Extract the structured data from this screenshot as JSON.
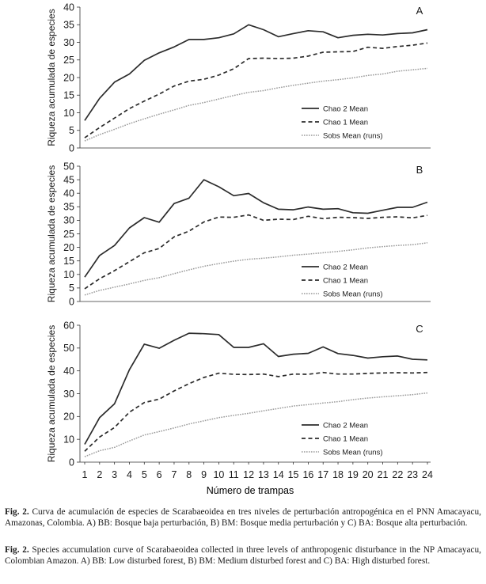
{
  "figure": {
    "x_axis_label": "Número de trampas",
    "x_ticks": [
      "1",
      "2",
      "3",
      "4",
      "5",
      "6",
      "7",
      "8",
      "9",
      "10",
      "11",
      "12",
      "13",
      "14",
      "15",
      "16",
      "17",
      "18",
      "19",
      "20",
      "21",
      "22",
      "23",
      "24"
    ]
  },
  "chart_data": [
    {
      "type": "line",
      "panel_letter": "A",
      "ylabel": "Riqueza acumulada de especies",
      "xlabel": "",
      "ylim": [
        0,
        40
      ],
      "y_ticks": [
        "0",
        "5",
        "10",
        "15",
        "20",
        "25",
        "30",
        "35",
        "40"
      ],
      "legend_position": "right",
      "x": [
        1,
        2,
        3,
        4,
        5,
        6,
        7,
        8,
        9,
        10,
        11,
        12,
        13,
        14,
        15,
        16,
        17,
        18,
        19,
        20,
        21,
        22,
        23,
        24
      ],
      "series": [
        {
          "name": "Chao 2 Mean",
          "style": "solid",
          "values": [
            7.8,
            14.1,
            18.7,
            21.0,
            24.9,
            27.0,
            28.7,
            30.8,
            30.8,
            31.3,
            32.4,
            35.0,
            33.6,
            31.6,
            32.5,
            33.3,
            33.0,
            31.3,
            32.0,
            32.3,
            32.1,
            32.5,
            32.7,
            33.6
          ]
        },
        {
          "name": "Chao 1 Mean",
          "style": "dashed",
          "values": [
            2.9,
            5.8,
            8.5,
            11.2,
            13.3,
            15.3,
            17.6,
            19.0,
            19.5,
            20.7,
            22.5,
            25.4,
            25.5,
            25.4,
            25.5,
            26.1,
            27.2,
            27.3,
            27.4,
            28.6,
            28.3,
            28.8,
            29.2,
            29.8
          ]
        },
        {
          "name": "Sobs Mean (runs)",
          "style": "dotted",
          "values": [
            2.0,
            3.8,
            5.3,
            6.9,
            8.3,
            9.6,
            10.8,
            12.1,
            12.9,
            13.9,
            14.9,
            15.8,
            16.3,
            17.1,
            17.8,
            18.4,
            19.0,
            19.4,
            19.9,
            20.6,
            21.0,
            21.8,
            22.2,
            22.6
          ]
        }
      ]
    },
    {
      "type": "line",
      "panel_letter": "B",
      "ylabel": "Riqueza acumulada de especies",
      "xlabel": "",
      "ylim": [
        0,
        50
      ],
      "y_ticks": [
        "0",
        "5",
        "10",
        "15",
        "20",
        "25",
        "30",
        "35",
        "40",
        "45",
        "50"
      ],
      "legend_position": "right",
      "x": [
        1,
        2,
        3,
        4,
        5,
        6,
        7,
        8,
        9,
        10,
        11,
        12,
        13,
        14,
        15,
        16,
        17,
        18,
        19,
        20,
        21,
        22,
        23,
        24
      ],
      "series": [
        {
          "name": "Chao 2 Mean",
          "style": "solid",
          "values": [
            9.0,
            17.0,
            20.7,
            27.2,
            31.0,
            29.3,
            36.2,
            38.2,
            45.0,
            42.4,
            39.1,
            39.9,
            36.5,
            34.1,
            33.9,
            34.9,
            34.1,
            34.3,
            32.8,
            32.6,
            33.7,
            34.8,
            34.8,
            36.7
          ]
        },
        {
          "name": "Chao 1 Mean",
          "style": "dashed",
          "values": [
            4.7,
            8.4,
            11.4,
            14.7,
            18.0,
            19.6,
            23.9,
            26.0,
            29.4,
            31.2,
            31.1,
            32.0,
            30.0,
            30.4,
            30.3,
            31.5,
            30.6,
            31.1,
            31.0,
            30.7,
            31.1,
            31.3,
            30.9,
            31.8
          ]
        },
        {
          "name": "Sobs Mean (runs)",
          "style": "dotted",
          "values": [
            2.4,
            4.1,
            5.3,
            6.5,
            7.8,
            8.8,
            10.3,
            11.7,
            13.0,
            14.0,
            14.9,
            15.6,
            16.0,
            16.5,
            17.1,
            17.5,
            18.0,
            18.5,
            19.1,
            19.8,
            20.3,
            20.7,
            21.0,
            21.7
          ]
        }
      ]
    },
    {
      "type": "line",
      "panel_letter": "C",
      "ylabel": "Riqueza acumulada de especies",
      "xlabel": "Número de trampas",
      "ylim": [
        0,
        60
      ],
      "y_ticks": [
        "0",
        "10",
        "20",
        "30",
        "40",
        "50",
        "60"
      ],
      "legend_position": "right",
      "x": [
        1,
        2,
        3,
        4,
        5,
        6,
        7,
        8,
        9,
        10,
        11,
        12,
        13,
        14,
        15,
        16,
        17,
        18,
        19,
        20,
        21,
        22,
        23,
        24
      ],
      "series": [
        {
          "name": "Chao 2 Mean",
          "style": "solid",
          "values": [
            7.8,
            19.5,
            25.6,
            40.5,
            51.7,
            49.9,
            53.4,
            56.5,
            56.3,
            55.9,
            50.3,
            50.3,
            51.9,
            46.3,
            47.3,
            47.7,
            50.5,
            47.6,
            46.8,
            45.6,
            46.2,
            46.5,
            45.1,
            44.8
          ]
        },
        {
          "name": "Chao 1 Mean",
          "style": "dashed",
          "values": [
            4.8,
            11.0,
            15.2,
            21.9,
            26.1,
            27.6,
            31.2,
            34.4,
            37.1,
            39.0,
            38.5,
            38.4,
            38.6,
            37.5,
            38.6,
            38.5,
            39.3,
            38.6,
            38.6,
            38.9,
            39.1,
            39.2,
            39.1,
            39.3
          ]
        },
        {
          "name": "Sobs Mean (runs)",
          "style": "dotted",
          "values": [
            2.4,
            5.0,
            6.5,
            9.3,
            11.9,
            13.4,
            15.0,
            16.7,
            18.1,
            19.5,
            20.5,
            21.4,
            22.5,
            23.5,
            24.6,
            25.2,
            25.9,
            26.5,
            27.4,
            28.1,
            28.6,
            29.1,
            29.6,
            30.3
          ]
        }
      ]
    }
  ],
  "caption": {
    "es_label": "Fig. 2.",
    "es_text": " Curva de acumulación de especies de Scarabaeoidea en tres niveles de perturbación antropogénica en el PNN Amacayacu, Amazonas, Colombia. A) BB: Bosque baja perturbación, B) BM: Bosque media perturbación y C) BA: Bosque alta perturbación.",
    "en_label": "Fig. 2.",
    "en_text": " Species accumulation curve of Scarabaeoidea collected in three levels of anthropogenic disturbance in the NP Amacayacu, Colombian Amazon. A) BB: Low disturbed forest, B) BM: Medium disturbed forest and C) BA: High disturbed forest."
  }
}
